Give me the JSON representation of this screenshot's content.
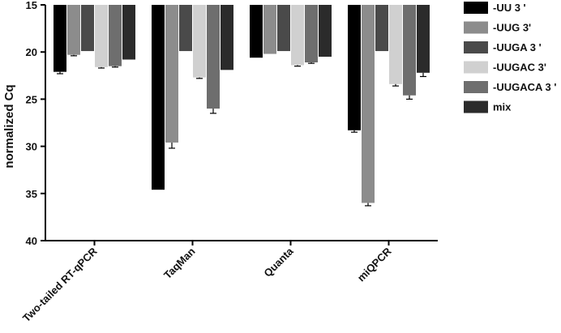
{
  "chart_data": {
    "type": "bar",
    "title": "",
    "xlabel": "",
    "ylabel": "normalized Cq",
    "y_inverted": true,
    "ylim": [
      15,
      40
    ],
    "yticks": [
      15,
      20,
      25,
      30,
      35,
      40
    ],
    "grid": false,
    "legend_position": "right",
    "categories": [
      "Two-tailed RT-qPCR",
      "TaqMan",
      "Quanta",
      "miQPCR"
    ],
    "series": [
      {
        "name": "-UU 3 '",
        "color": "#000000",
        "values": [
          22.1,
          34.6,
          20.6,
          28.3
        ],
        "errors": [
          0.2,
          0.0,
          0.0,
          0.2
        ]
      },
      {
        "name": "-UUG 3'",
        "color": "#8c8c8c",
        "values": [
          20.3,
          29.6,
          20.2,
          36.0
        ],
        "errors": [
          0.1,
          0.6,
          0.0,
          0.3
        ]
      },
      {
        "name": "-UUGA 3 '",
        "color": "#4a4a4a",
        "values": [
          19.9,
          19.9,
          19.9,
          19.9
        ],
        "errors": [
          0.0,
          0.0,
          0.0,
          0.0
        ]
      },
      {
        "name": "-UUGAC 3'",
        "color": "#d0d0d0",
        "values": [
          21.6,
          22.7,
          21.4,
          23.4
        ],
        "errors": [
          0.1,
          0.1,
          0.1,
          0.2
        ]
      },
      {
        "name": "-UUGACA 3 '",
        "color": "#6e6e6e",
        "values": [
          21.5,
          26.0,
          21.1,
          24.6
        ],
        "errors": [
          0.1,
          0.5,
          0.1,
          0.4
        ]
      },
      {
        "name": "mix",
        "color": "#2b2b2b",
        "values": [
          20.8,
          21.9,
          20.5,
          22.2
        ],
        "errors": [
          0.0,
          0.0,
          0.0,
          0.4
        ]
      }
    ]
  }
}
